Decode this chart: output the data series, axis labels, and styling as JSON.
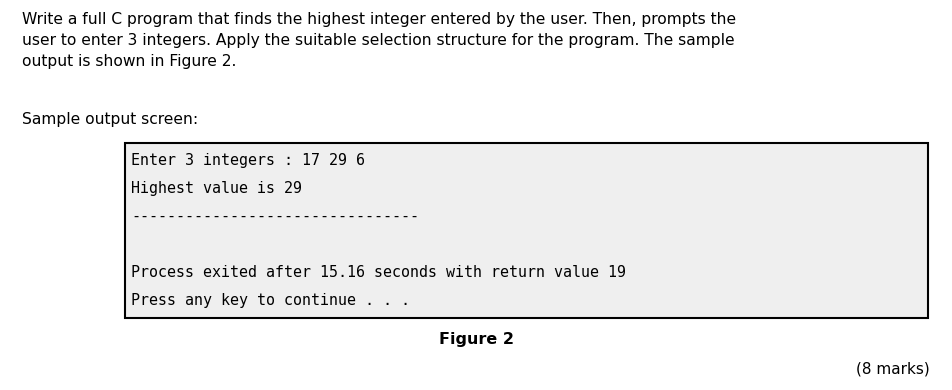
{
  "title_text": "Write a full C program that finds the highest integer entered by the user. Then, prompts the\nuser to enter 3 integers. Apply the suitable selection structure for the program. The sample\noutput is shown in Figure 2.",
  "sample_label": "Sample output screen:",
  "terminal_lines": [
    "Enter 3 integers : 17 29 6",
    "Highest value is 29",
    "--------------------------------",
    "",
    "Process exited after 15.16 seconds with return value 19",
    "Press any key to continue . . ."
  ],
  "figure_label": "Figure 2",
  "marks_label": "(8 marks)",
  "bg_color": "#ffffff",
  "terminal_bg": "#efefef",
  "terminal_border": "#000000",
  "text_color": "#000000",
  "title_fontsize": 11.2,
  "sample_label_fontsize": 11.2,
  "terminal_fontsize": 10.8,
  "figure_label_fontsize": 11.5,
  "marks_fontsize": 11.0,
  "fig_width": 9.53,
  "fig_height": 3.9
}
